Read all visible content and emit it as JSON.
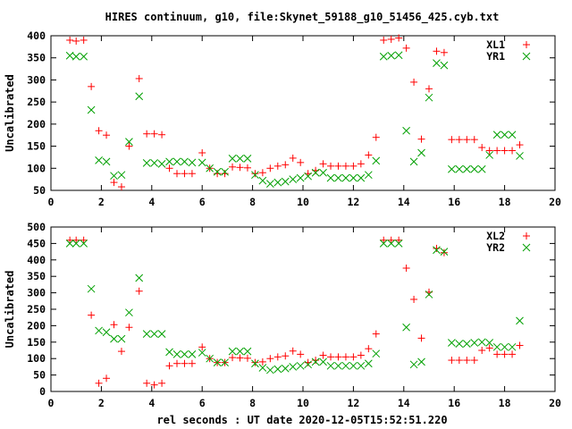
{
  "title": "HIRES continuum, g10, file:Skynet_59188_g10_51456_425.cyb.txt",
  "xlabel": "rel seconds : UT date 2020-12-05T15:52:51.220",
  "colors": {
    "red": "#ff0000",
    "green": "#00a000"
  },
  "chart_data": [
    {
      "type": "scatter",
      "ylabel": "Uncalibrated",
      "xlim": [
        0,
        20
      ],
      "ylim": [
        50,
        400
      ],
      "xticks": [
        0,
        2,
        4,
        6,
        8,
        10,
        12,
        14,
        16,
        18,
        20
      ],
      "yticks": [
        50,
        100,
        150,
        200,
        250,
        300,
        350,
        400
      ],
      "legend_position": "top-right",
      "series": [
        {
          "name": "XL1",
          "marker": "plus",
          "color": "#ff0000",
          "x": [
            0.75,
            1.0,
            1.3,
            1.6,
            1.9,
            2.2,
            2.5,
            2.8,
            3.1,
            3.5,
            3.8,
            4.1,
            4.4,
            4.7,
            5.0,
            5.3,
            5.6,
            6.0,
            6.3,
            6.6,
            6.9,
            7.2,
            7.5,
            7.8,
            8.1,
            8.4,
            8.7,
            9.0,
            9.3,
            9.6,
            9.9,
            10.2,
            10.5,
            10.8,
            11.1,
            11.4,
            11.7,
            12.0,
            12.3,
            12.6,
            12.9,
            13.2,
            13.5,
            13.8,
            14.1,
            14.4,
            14.7,
            15.0,
            15.3,
            15.6,
            15.9,
            16.2,
            16.5,
            16.8,
            17.1,
            17.4,
            17.7,
            18.0,
            18.3,
            18.6
          ],
          "y": [
            390,
            388,
            390,
            285,
            185,
            175,
            68,
            58,
            150,
            303,
            178,
            178,
            176,
            100,
            88,
            88,
            88,
            135,
            100,
            88,
            88,
            103,
            102,
            101,
            88,
            90,
            100,
            105,
            108,
            123,
            113,
            88,
            95,
            110,
            105,
            105,
            105,
            105,
            110,
            130,
            170,
            390,
            392,
            395,
            372,
            295,
            166,
            280,
            365,
            362,
            165,
            165,
            165,
            165,
            147,
            140,
            140,
            140,
            140,
            153
          ]
        },
        {
          "name": "YR1",
          "marker": "cross",
          "color": "#00a000",
          "x": [
            0.75,
            1.0,
            1.3,
            1.6,
            1.9,
            2.2,
            2.5,
            2.8,
            3.1,
            3.5,
            3.8,
            4.1,
            4.4,
            4.7,
            5.0,
            5.3,
            5.6,
            6.0,
            6.3,
            6.6,
            6.9,
            7.2,
            7.5,
            7.8,
            8.1,
            8.4,
            8.7,
            9.0,
            9.3,
            9.6,
            9.9,
            10.2,
            10.5,
            10.8,
            11.1,
            11.4,
            11.7,
            12.0,
            12.3,
            12.6,
            12.9,
            13.2,
            13.5,
            13.8,
            14.1,
            14.4,
            14.7,
            15.0,
            15.3,
            15.6,
            15.9,
            16.2,
            16.5,
            16.8,
            17.1,
            17.4,
            17.7,
            18.0,
            18.3,
            18.6
          ],
          "y": [
            355,
            353,
            353,
            232,
            118,
            115,
            83,
            85,
            160,
            263,
            112,
            112,
            110,
            115,
            115,
            115,
            113,
            113,
            100,
            92,
            92,
            122,
            122,
            122,
            85,
            72,
            65,
            68,
            70,
            75,
            78,
            82,
            90,
            90,
            78,
            78,
            78,
            78,
            78,
            85,
            117,
            353,
            355,
            356,
            185,
            115,
            135,
            260,
            338,
            333,
            98,
            98,
            98,
            98,
            98,
            130,
            176,
            176,
            176,
            128
          ]
        }
      ]
    },
    {
      "type": "scatter",
      "ylabel": "Uncalibrated",
      "xlim": [
        0,
        20
      ],
      "ylim": [
        0,
        500
      ],
      "xticks": [
        0,
        2,
        4,
        6,
        8,
        10,
        12,
        14,
        16,
        18,
        20
      ],
      "yticks": [
        0,
        50,
        100,
        150,
        200,
        250,
        300,
        350,
        400,
        450,
        500
      ],
      "legend_position": "top-right",
      "series": [
        {
          "name": "XL2",
          "marker": "plus",
          "color": "#ff0000",
          "x": [
            0.75,
            1.0,
            1.3,
            1.6,
            1.9,
            2.2,
            2.5,
            2.8,
            3.1,
            3.5,
            3.8,
            4.1,
            4.4,
            4.7,
            5.0,
            5.3,
            5.6,
            6.0,
            6.3,
            6.6,
            6.9,
            7.2,
            7.5,
            7.8,
            8.1,
            8.4,
            8.7,
            9.0,
            9.3,
            9.6,
            9.9,
            10.2,
            10.5,
            10.8,
            11.1,
            11.4,
            11.7,
            12.0,
            12.3,
            12.6,
            12.9,
            13.2,
            13.5,
            13.8,
            14.1,
            14.4,
            14.7,
            15.0,
            15.3,
            15.6,
            15.9,
            16.2,
            16.5,
            16.8,
            17.1,
            17.4,
            17.7,
            18.0,
            18.3,
            18.6
          ],
          "y": [
            460,
            460,
            460,
            232,
            25,
            40,
            203,
            122,
            195,
            305,
            25,
            20,
            25,
            78,
            85,
            85,
            85,
            135,
            100,
            88,
            88,
            103,
            102,
            101,
            88,
            90,
            100,
            105,
            108,
            123,
            113,
            88,
            95,
            110,
            105,
            105,
            105,
            105,
            110,
            130,
            175,
            460,
            460,
            460,
            375,
            280,
            162,
            302,
            435,
            422,
            95,
            95,
            95,
            95,
            125,
            132,
            113,
            113,
            113,
            140
          ]
        },
        {
          "name": "YR2",
          "marker": "cross",
          "color": "#00a000",
          "x": [
            0.75,
            1.0,
            1.3,
            1.6,
            1.9,
            2.2,
            2.5,
            2.8,
            3.1,
            3.5,
            3.8,
            4.1,
            4.4,
            4.7,
            5.0,
            5.3,
            5.6,
            6.0,
            6.3,
            6.6,
            6.9,
            7.2,
            7.5,
            7.8,
            8.1,
            8.4,
            8.7,
            9.0,
            9.3,
            9.6,
            9.9,
            10.2,
            10.5,
            10.8,
            11.1,
            11.4,
            11.7,
            12.0,
            12.3,
            12.6,
            12.9,
            13.2,
            13.5,
            13.8,
            14.1,
            14.4,
            14.7,
            15.0,
            15.3,
            15.6,
            15.9,
            16.2,
            16.5,
            16.8,
            17.1,
            17.4,
            17.7,
            18.0,
            18.3,
            18.6
          ],
          "y": [
            450,
            450,
            450,
            312,
            185,
            180,
            160,
            160,
            240,
            345,
            175,
            175,
            175,
            120,
            113,
            113,
            113,
            118,
            100,
            88,
            88,
            122,
            122,
            122,
            85,
            72,
            65,
            68,
            70,
            75,
            78,
            82,
            90,
            90,
            78,
            78,
            78,
            78,
            78,
            85,
            115,
            450,
            450,
            450,
            195,
            82,
            90,
            295,
            430,
            425,
            148,
            145,
            145,
            148,
            150,
            148,
            135,
            135,
            135,
            215
          ]
        }
      ]
    }
  ]
}
